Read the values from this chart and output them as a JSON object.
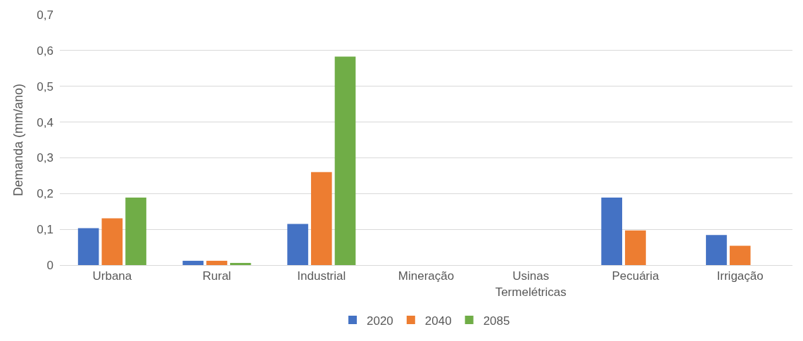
{
  "chart_data": {
    "type": "bar",
    "ylabel": "Demanda (mm/ano)",
    "categories": [
      "Urbana",
      "Rural",
      "Industrial",
      "Mineração",
      "Usinas\nTermelétricas",
      "Pecuária",
      "Irrigação"
    ],
    "series": [
      {
        "name": "2020",
        "color": "#4472c4",
        "values": [
          0.103,
          0.012,
          0.115,
          0,
          0,
          0.189,
          0.084
        ]
      },
      {
        "name": "2040",
        "color": "#ed7d31",
        "values": [
          0.131,
          0.012,
          0.26,
          0,
          0,
          0.097,
          0.054
        ]
      },
      {
        "name": "2085",
        "color": "#70ad47",
        "values": [
          0.189,
          0.006,
          0.583,
          0,
          0,
          null,
          null
        ]
      }
    ],
    "ylim": [
      0,
      0.7
    ],
    "yticks": [
      {
        "value": 0,
        "label": "0"
      },
      {
        "value": 0.1,
        "label": "0,1"
      },
      {
        "value": 0.2,
        "label": "0,2"
      },
      {
        "value": 0.3,
        "label": "0,3"
      },
      {
        "value": 0.4,
        "label": "0,4"
      },
      {
        "value": 0.5,
        "label": "0,5"
      },
      {
        "value": 0.6,
        "label": "0,6"
      },
      {
        "value": 0.7,
        "label": "0,7"
      }
    ],
    "grid": "y",
    "legend": "bottom"
  }
}
